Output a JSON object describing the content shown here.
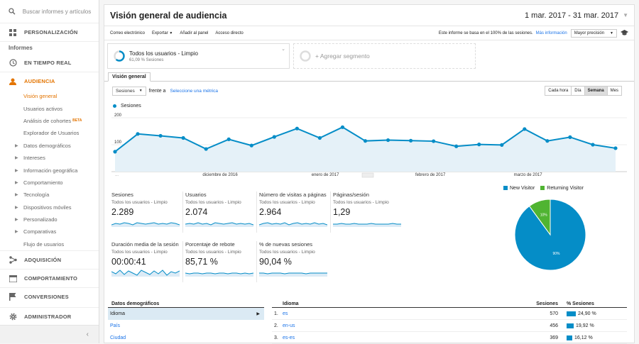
{
  "sidebar": {
    "search_placeholder": "Buscar informes y artículos",
    "personalizacion": "PERSONALIZACIÓN",
    "informes": "Informes",
    "tiempo_real": "EN TIEMPO REAL",
    "audiencia": "AUDIENCIA",
    "items": [
      "Visión general",
      "Usuarios activos",
      "Análisis de cohortes",
      "Explorador de Usuarios",
      "Datos demográficos",
      "Intereses",
      "Información geográfica",
      "Comportamiento",
      "Tecnología",
      "Dispositivos móviles",
      "Personalizado",
      "Comparativas",
      "Flujo de usuarios"
    ],
    "beta": "BETA",
    "adquisicion": "ADQUISICIÓN",
    "comportamiento": "COMPORTAMIENTO",
    "conversiones": "CONVERSIONES",
    "administrador": "ADMINISTRADOR"
  },
  "header": {
    "title": "Visión general de audiencia",
    "date_range": "1 mar. 2017 - 31 mar. 2017"
  },
  "toolbar": {
    "email": "Correo electrónico",
    "export": "Exportar",
    "add_panel": "Añadir al panel",
    "direct": "Acceso directo",
    "info": "Este informe se basa en el 100% de las sesiones.",
    "more_info": "Más información",
    "precision": "Mayor precisión"
  },
  "segments": {
    "title": "Todos los usuarios - Limpio",
    "sub": "61,09 % Sesiones",
    "add": "+ Agregar segmento"
  },
  "tab": "Visión general",
  "metric": {
    "select": "Sesiones",
    "frente": "frente a",
    "select_metric": "Seleccione una métrica"
  },
  "granularity": [
    "Cada hora",
    "Día",
    "Semana",
    "Mes"
  ],
  "chart_data": {
    "type": "area",
    "series": [
      {
        "name": "Sesiones",
        "values": [
          74,
          140,
          133,
          125,
          84,
          120,
          97,
          129,
          160,
          125,
          165,
          114,
          117,
          115,
          113,
          94,
          101,
          99,
          158,
          114,
          128,
          100,
          87
        ]
      }
    ],
    "y_ticks": [
      "200",
      "100"
    ],
    "ylim": [
      0,
      200
    ],
    "x_labels": [
      "diciembre de 2016",
      "enero de 2017",
      "febrero de 2017",
      "marzo de 2017"
    ],
    "color": "#058dc7"
  },
  "kpis": [
    {
      "label": "Sesiones",
      "seg": "Todos los usuarios - Limpio",
      "value": "2.289"
    },
    {
      "label": "Usuarios",
      "seg": "Todos los usuarios - Limpio",
      "value": "2.074"
    },
    {
      "label": "Número de visitas a páginas",
      "seg": "Todos los usuarios - Limpio",
      "value": "2.964"
    },
    {
      "label": "Páginas/sesión",
      "seg": "Todos los usuarios - Limpio",
      "value": "1,29"
    },
    {
      "label": "Duración media de la sesión",
      "seg": "Todos los usuarios - Limpio",
      "value": "00:00:41"
    },
    {
      "label": "Porcentaje de rebote",
      "seg": "Todos los usuarios - Limpio",
      "value": "85,71 %"
    },
    {
      "label": "% de nuevas sesiones",
      "seg": "Todos los usuarios - Limpio",
      "value": "90,04 %"
    }
  ],
  "pie": {
    "legend": [
      "New Visitor",
      "Returning Visitor"
    ],
    "values": [
      90,
      10
    ],
    "labels": [
      "90%",
      "10%"
    ],
    "colors": [
      "#058dc7",
      "#50b432"
    ]
  },
  "demo": {
    "header": "Datos demográficos",
    "items": [
      "Idioma",
      "País",
      "Ciudad"
    ]
  },
  "lang_table": {
    "headers": [
      "Idioma",
      "Sesiones",
      "% Sesiones"
    ],
    "rows": [
      {
        "n": "1.",
        "lang": "es",
        "sessions": "570",
        "pct": "24,90 %",
        "frac": 0.249
      },
      {
        "n": "2.",
        "lang": "en-us",
        "sessions": "456",
        "pct": "19,92 %",
        "frac": 0.1992
      },
      {
        "n": "3.",
        "lang": "es-es",
        "sessions": "369",
        "pct": "16,12 %",
        "frac": 0.1612
      }
    ]
  }
}
